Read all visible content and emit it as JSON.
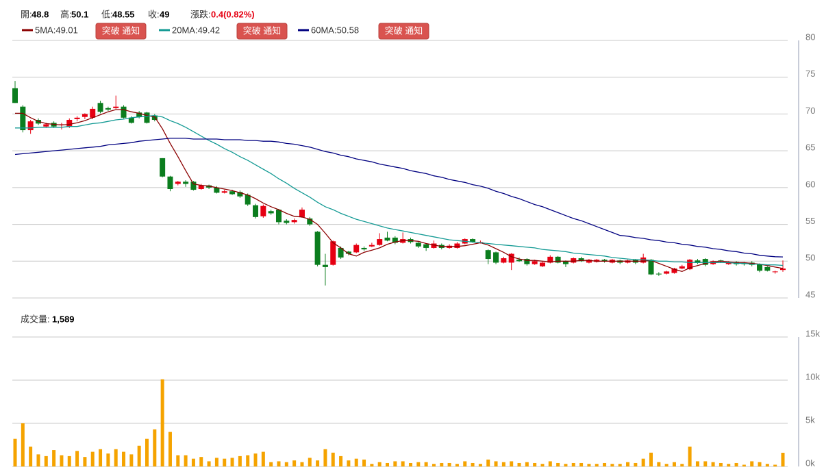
{
  "header": {
    "open_label": "開:",
    "high_label": "高:",
    "low_label": "低:",
    "close_label": "收:",
    "change_label": "漲跌:",
    "change": "0.4(0.82%)",
    "volume_label": "成交量:",
    "volume_value": "1,589",
    "button": "突破 通知"
  },
  "chart_data": {
    "type": "candlestick",
    "up_color": "#e60012",
    "down_color": "#0b7d1e",
    "ylim": [
      45,
      80
    ],
    "yticks": [
      45,
      50,
      55,
      60,
      65,
      70,
      75,
      80
    ],
    "grid": true,
    "open": [
      73.5,
      71,
      67.8,
      69.2,
      68.3,
      68.8,
      68.5,
      68.3,
      69.3,
      69.6,
      69.5,
      71.5,
      70.8,
      70.8,
      71,
      69.5,
      70.2,
      70.2,
      69.8,
      64,
      61.5,
      60.5,
      60.8,
      60.8,
      59.8,
      60.3,
      60,
      59.3,
      59.5,
      59.4,
      59,
      57.6,
      56.1,
      56.8,
      57,
      55.5,
      55.3,
      56,
      55.8,
      54,
      49.5,
      49.5,
      51.8,
      51.3,
      51.2,
      51.8,
      52,
      52.2,
      53.2,
      53.2,
      52.5,
      53,
      52.5,
      52.3,
      51.8,
      52.2,
      51.8,
      51.8,
      52.4,
      53,
      52.5,
      51.5,
      51.2,
      49.8,
      49.8,
      50.2,
      50.3,
      49.6,
      49.3,
      49.8,
      50.6,
      50,
      49.8,
      50.4,
      49.8,
      49.9,
      50.2,
      49.8,
      50.1,
      49.8,
      50.2,
      49.8,
      50.2,
      48.3,
      48.3,
      48.4,
      49,
      48.9,
      50.1,
      50.3,
      49.6,
      50.1,
      49.6,
      49.9,
      49.8,
      49.8,
      49.6,
      49.2,
      48.5,
      48.8
    ],
    "high": [
      74.5,
      71.2,
      69.2,
      69.4,
      68.8,
      69,
      68.8,
      69.4,
      69.7,
      70.1,
      71,
      71.8,
      71,
      72.5,
      71.2,
      69.7,
      70.4,
      70.3,
      70,
      64,
      61.6,
      60.9,
      61,
      60.9,
      60.5,
      60.4,
      60.2,
      59.7,
      59.7,
      59.6,
      59.2,
      57.8,
      57.7,
      57,
      57.1,
      55.7,
      55.8,
      57.3,
      56,
      54.1,
      51,
      52.8,
      52,
      51.4,
      52.4,
      52,
      52.5,
      53.8,
      54,
      53.4,
      53.9,
      53.2,
      52.6,
      52.4,
      52.8,
      52.4,
      52.3,
      52.6,
      53.1,
      53.1,
      52.8,
      51.6,
      51.3,
      50.6,
      51.1,
      50.5,
      50.4,
      50.2,
      49.9,
      50.8,
      50.7,
      50.1,
      50.5,
      50.6,
      50.3,
      50.3,
      50.3,
      50.3,
      50.2,
      50.2,
      50.3,
      51,
      50.3,
      48.5,
      48.7,
      49.1,
      49.5,
      50.3,
      50.3,
      50.4,
      50.1,
      50.2,
      50,
      50,
      49.9,
      50,
      49.7,
      49.3,
      48.7,
      50.1
    ],
    "low": [
      71.5,
      67.5,
      67.3,
      68.5,
      68.1,
      68.1,
      67.9,
      68.1,
      69,
      69.3,
      69.3,
      70.1,
      70.4,
      70.7,
      69.4,
      68.7,
      69.4,
      68.7,
      69,
      61.4,
      59.5,
      60.3,
      60.1,
      59.6,
      59.7,
      59.8,
      59.2,
      59.2,
      59,
      58.6,
      57.5,
      55.8,
      55.9,
      56.3,
      55,
      55,
      55.1,
      55.9,
      54.8,
      49.3,
      46.7,
      49.4,
      50.3,
      50.8,
      51.1,
      51.4,
      51.9,
      52.1,
      52.7,
      52.3,
      52.4,
      52.4,
      51.8,
      51.4,
      51.7,
      51.6,
      51.7,
      51.7,
      52.3,
      52.5,
      52.4,
      49.6,
      49.6,
      49.7,
      48.8,
      49.9,
      49.4,
      49.5,
      49.2,
      49.7,
      49.7,
      49.2,
      49.7,
      49.9,
      49.7,
      49.8,
      49.8,
      49.7,
      49.6,
      49.7,
      49.6,
      49.7,
      48.1,
      48,
      48.2,
      48.3,
      48.9,
      48.8,
      49.6,
      49.3,
      49.5,
      49.8,
      49.5,
      49.4,
      49.4,
      49.3,
      48.5,
      48.6,
      48.3,
      48.55
    ],
    "close": [
      71.5,
      67.8,
      69,
      68.7,
      68.6,
      68.3,
      68.6,
      69.2,
      69.5,
      70,
      70.7,
      70.3,
      70.6,
      71,
      69.5,
      68.8,
      69.6,
      68.8,
      69.2,
      61.5,
      59.8,
      60.8,
      60.5,
      59.7,
      60.3,
      60,
      59.3,
      59.5,
      59.1,
      58.8,
      57.7,
      56,
      57.5,
      56.5,
      55.3,
      55.2,
      55.6,
      57,
      55,
      49.5,
      49.2,
      52.7,
      50.5,
      51,
      52.2,
      51.6,
      52.2,
      53,
      52.8,
      52.5,
      53,
      52.6,
      52,
      51.8,
      52.4,
      51.8,
      52.1,
      52.4,
      53,
      52.6,
      52.6,
      50.3,
      49.8,
      50.4,
      51,
      50,
      49.6,
      50,
      49.8,
      50.6,
      49.8,
      49.6,
      50.4,
      50,
      50.2,
      50.2,
      50,
      50.2,
      49.8,
      50.1,
      49.8,
      50.5,
      48.2,
      48.2,
      48.6,
      49,
      49.3,
      50.2,
      49.8,
      49.5,
      50,
      50,
      49.9,
      49.6,
      49.6,
      49.5,
      48.7,
      48.7,
      48.6,
      49
    ],
    "ma": [
      {
        "name": "5MA:",
        "color": "#8b0000",
        "values": [
          70.1,
          70.1,
          69.5,
          69.0,
          68.7,
          68.6,
          68.5,
          68.6,
          68.8,
          69.1,
          69.5,
          69.9,
          70.3,
          70.6,
          70.6,
          70.3,
          70.1,
          69.8,
          69.6,
          68.0,
          66.0,
          64.2,
          62.3,
          60.5,
          60.3,
          60.2,
          60.0,
          59.8,
          59.6,
          59.3,
          59.0,
          58.5,
          57.9,
          57.4,
          57.0,
          56.5,
          56.1,
          56.0,
          55.7,
          55.0,
          53.8,
          52.5,
          51.8,
          51.0,
          50.7,
          51.2,
          51.5,
          51.8,
          52.3,
          52.6,
          52.8,
          52.8,
          52.7,
          52.4,
          52.2,
          52.0,
          52.0,
          52.0,
          52.1,
          52.3,
          52.5,
          52.2,
          51.7,
          51.2,
          50.6,
          50.3,
          50.1,
          50.1,
          50.0,
          49.9,
          50.0,
          50.0,
          50.0,
          50.1,
          50.1,
          50.0,
          50.0,
          50.0,
          50.0,
          50.0,
          50.0,
          50.0,
          50.1,
          49.7,
          49.3,
          48.9,
          48.6,
          49.1,
          49.4,
          49.7,
          49.9,
          50.0,
          49.9,
          49.8,
          49.8,
          49.7,
          49.6,
          49.4,
          49.2,
          49.01
        ]
      },
      {
        "name": "20MA:",
        "color": "#139a94",
        "values": [
          68.1,
          68.1,
          68.1,
          68.2,
          68.2,
          68.2,
          68.2,
          68.3,
          68.3,
          68.5,
          68.7,
          68.8,
          69.0,
          69.2,
          69.3,
          69.5,
          69.6,
          69.7,
          69.8,
          69.6,
          69.1,
          68.7,
          68.2,
          67.6,
          67.0,
          66.4,
          65.9,
          65.3,
          64.8,
          64.2,
          63.7,
          63.1,
          62.5,
          61.9,
          61.2,
          60.6,
          59.9,
          59.3,
          58.7,
          58.0,
          57.4,
          57.0,
          56.5,
          56.1,
          55.7,
          55.4,
          55.1,
          54.8,
          54.5,
          54.3,
          54.1,
          53.9,
          53.7,
          53.5,
          53.3,
          53.1,
          52.9,
          52.8,
          52.7,
          52.6,
          52.5,
          52.4,
          52.3,
          52.2,
          52.1,
          52.0,
          51.9,
          51.8,
          51.6,
          51.5,
          51.4,
          51.3,
          51.1,
          51.0,
          50.9,
          50.8,
          50.7,
          50.5,
          50.4,
          50.3,
          50.2,
          50.2,
          50.1,
          50.0,
          50.0,
          49.9,
          49.9,
          49.8,
          49.8,
          49.8,
          49.8,
          49.8,
          49.8,
          49.7,
          49.7,
          49.6,
          49.6,
          49.5,
          49.5,
          49.42
        ]
      },
      {
        "name": "60MA:",
        "color": "#000080",
        "values": [
          64.5,
          64.6,
          64.7,
          64.8,
          64.9,
          65.0,
          65.1,
          65.2,
          65.3,
          65.4,
          65.5,
          65.6,
          65.8,
          65.9,
          66.0,
          66.1,
          66.3,
          66.4,
          66.5,
          66.6,
          66.7,
          66.7,
          66.7,
          66.6,
          66.6,
          66.6,
          66.6,
          66.5,
          66.5,
          66.5,
          66.4,
          66.4,
          66.3,
          66.3,
          66.2,
          66.0,
          65.9,
          65.7,
          65.5,
          65.2,
          64.9,
          64.7,
          64.4,
          64.2,
          63.9,
          63.7,
          63.5,
          63.2,
          63.0,
          62.8,
          62.6,
          62.3,
          62.1,
          61.9,
          61.6,
          61.4,
          61.1,
          60.9,
          60.7,
          60.4,
          60.2,
          59.9,
          59.5,
          59.2,
          58.8,
          58.5,
          58.1,
          57.7,
          57.4,
          57.0,
          56.6,
          56.2,
          55.8,
          55.5,
          55.1,
          54.7,
          54.3,
          53.9,
          53.5,
          53.4,
          53.2,
          53.1,
          52.9,
          52.8,
          52.6,
          52.5,
          52.3,
          52.2,
          52.0,
          51.9,
          51.7,
          51.6,
          51.4,
          51.3,
          51.1,
          51.0,
          50.8,
          50.7,
          50.6,
          50.58
        ]
      }
    ],
    "volume": {
      "color": "#f5a300",
      "ylim": [
        0,
        15000
      ],
      "yticks": [
        {
          "value": 0,
          "label": "0k"
        },
        {
          "value": 5000,
          "label": "5k"
        },
        {
          "value": 10000,
          "label": "10k"
        },
        {
          "value": 15000,
          "label": "15k"
        }
      ],
      "values": [
        3200,
        5000,
        2300,
        1400,
        1200,
        1900,
        1300,
        1200,
        1800,
        1100,
        1700,
        2000,
        1500,
        2000,
        1700,
        1400,
        2400,
        3200,
        4300,
        10100,
        4000,
        1300,
        1300,
        900,
        1100,
        600,
        1000,
        900,
        1000,
        1200,
        1300,
        1500,
        1700,
        500,
        600,
        500,
        700,
        500,
        1000,
        700,
        2000,
        1600,
        1200,
        700,
        900,
        800,
        300,
        500,
        400,
        600,
        600,
        400,
        500,
        500,
        300,
        400,
        400,
        300,
        600,
        400,
        300,
        800,
        600,
        500,
        600,
        400,
        500,
        400,
        300,
        600,
        400,
        300,
        400,
        400,
        300,
        300,
        400,
        300,
        300,
        500,
        400,
        900,
        1600,
        500,
        300,
        500,
        300,
        2300,
        600,
        600,
        500,
        400,
        300,
        400,
        200,
        600,
        500,
        300,
        200,
        1589
      ]
    }
  }
}
